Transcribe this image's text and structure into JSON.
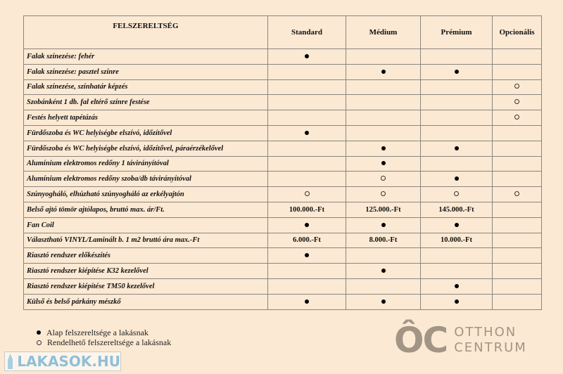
{
  "header": {
    "title": "FELSZERELTSÉG",
    "columns": [
      "Standard",
      "Médium",
      "Prémium",
      "Opcionális"
    ]
  },
  "rows": [
    {
      "label": "Falak színezése: fehér",
      "cells": [
        "dot",
        "",
        "",
        ""
      ]
    },
    {
      "label": "Falak színezése: pasztel színre",
      "cells": [
        "",
        "dot",
        "dot",
        ""
      ]
    },
    {
      "label": "Falak színezése, színhatár képzés",
      "cells": [
        "",
        "",
        "",
        "ring"
      ]
    },
    {
      "label": "Szobánként 1 db. fal eltérő színre festése",
      "cells": [
        "",
        "",
        "",
        "ring"
      ]
    },
    {
      "label": "Festés helyett tapétázás",
      "cells": [
        "",
        "",
        "",
        "ring"
      ]
    },
    {
      "label": "Fürdőszoba és WC helyiségbe elszívó, időzítővel",
      "cells": [
        "dot",
        "",
        "",
        ""
      ]
    },
    {
      "label": "Fürdőszoba és WC helyiségbe elszívó, időzítővel, páraérzékelővel",
      "cells": [
        "",
        "dot",
        "dot",
        ""
      ]
    },
    {
      "label": "Alumínium elektromos redőny 1 távirányítóval",
      "cells": [
        "",
        "dot",
        "",
        ""
      ]
    },
    {
      "label": "Alumínium elektromos redőny szoba/db távirányítóval",
      "cells": [
        "",
        "ring",
        "dot",
        ""
      ]
    },
    {
      "label": "Szúnyogháló, elhúzható szúnyogháló az erkélyajtón",
      "cells": [
        "ring",
        "ring",
        "ring",
        "ring"
      ]
    },
    {
      "label": "Belső ajtó tömör ajtólapos, bruttó max. ár/Ft.",
      "cells": [
        "100.000.-Ft",
        "125.000.-Ft",
        "145.000.-Ft",
        ""
      ]
    },
    {
      "label": "Fan Coil",
      "cells": [
        "dot",
        "dot",
        "dot",
        ""
      ]
    },
    {
      "label": "Választható VINYL/Laminált b. 1 m2 bruttó ára max.-Ft",
      "cells": [
        "6.000.-Ft",
        "8.000.-Ft",
        "10.000.-Ft",
        ""
      ]
    },
    {
      "label": "Riasztó rendszer előkészítés",
      "cells": [
        "dot",
        "",
        "",
        ""
      ]
    },
    {
      "label": "Riasztó rendszer kiépítése K32 kezelővel",
      "cells": [
        "",
        "dot",
        "",
        ""
      ]
    },
    {
      "label": "Riasztó rendszer kiépítése TM50 kezelővel",
      "cells": [
        "",
        "",
        "dot",
        ""
      ]
    },
    {
      "label": "Külső és belső párkány mészkő",
      "cells": [
        "dot",
        "dot",
        "dot",
        ""
      ]
    }
  ],
  "legend": [
    {
      "icon": "dot",
      "label": "Alap felszereltsége a lakásnak"
    },
    {
      "icon": "ring",
      "label": "Rendelhető felszereltsége a lakásnak"
    }
  ],
  "watermark": {
    "logo": "OC",
    "line1": "OTTHON",
    "line2": "CENTRUM"
  },
  "site_logo": "LAKÁSOK.HU",
  "colors": {
    "background": "#fbe9d3",
    "border": "#8a8580"
  }
}
